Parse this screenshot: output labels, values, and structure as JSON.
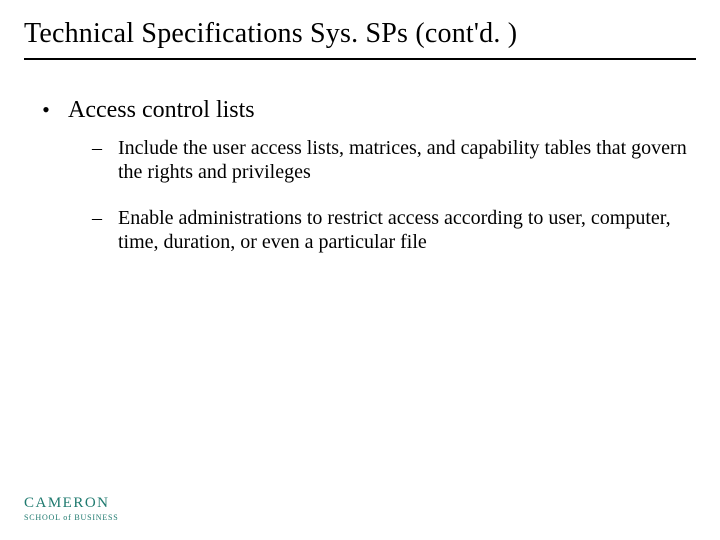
{
  "slide": {
    "title": "Technical Specifications Sys. SPs (cont'd. )",
    "rule_color": "#000000",
    "bullets": [
      {
        "text": "Access control lists",
        "subs": [
          "Include the user access lists, matrices, and capability tables that govern the rights and privileges",
          "Enable administrations to restrict access according to user, computer, time, duration, or even a particular file"
        ]
      }
    ]
  },
  "logo": {
    "main": "CAMERON",
    "sub": "SCHOOL of BUSINESS",
    "color": "#1f7a6f"
  },
  "styling": {
    "background_color": "#ffffff",
    "title_fontsize": 28,
    "bullet_fontsize": 24,
    "sub_fontsize": 20,
    "font_family": "Times New Roman"
  }
}
